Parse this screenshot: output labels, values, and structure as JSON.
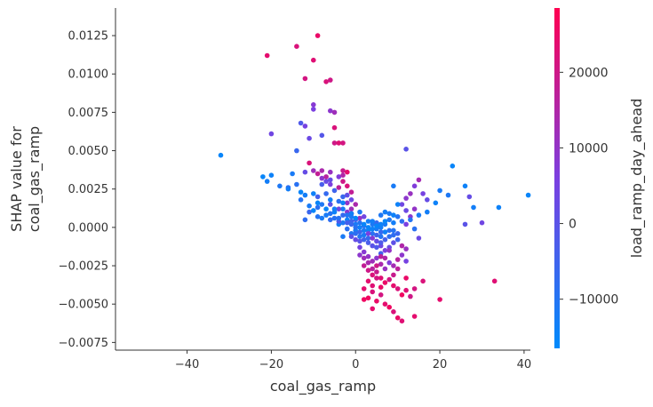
{
  "chart_data": {
    "type": "scatter",
    "title": "",
    "xlabel": "coal_gas_ramp",
    "ylabel_lines": [
      "SHAP value for",
      "coal_gas_ramp"
    ],
    "xlim": [
      -57,
      41.5
    ],
    "ylim": [
      -0.008,
      0.0143
    ],
    "x_ticks": [
      -40,
      -20,
      0,
      20,
      40
    ],
    "x_tick_labels": [
      "−40",
      "−20",
      "0",
      "20",
      "40"
    ],
    "y_ticks": [
      -0.0075,
      -0.005,
      -0.0025,
      0.0,
      0.0025,
      0.005,
      0.0075,
      0.01,
      0.0125
    ],
    "y_tick_labels": [
      "−0.0075",
      "−0.0050",
      "−0.0025",
      "0.0000",
      "0.0025",
      "0.0050",
      "0.0075",
      "0.0100",
      "0.0125"
    ],
    "grid": false,
    "colorbar": {
      "label": "load_ramp_day_ahead",
      "range": [
        -16500,
        28500
      ],
      "ticks": [
        -10000,
        0,
        10000,
        20000
      ],
      "tick_labels": [
        "−10000",
        "0",
        "10000",
        "20000"
      ],
      "low_color": "#008afb",
      "mid_color": "#7b3fe0",
      "high_color": "#ff0051"
    },
    "points": [
      [
        -32,
        0.0047,
        -15000
      ],
      [
        -21,
        0.0112,
        24000
      ],
      [
        -14,
        0.0118,
        22000
      ],
      [
        -9,
        0.0125,
        25000
      ],
      [
        -12,
        0.0097,
        21000
      ],
      [
        -10,
        0.0109,
        23000
      ],
      [
        -7,
        0.0095,
        22000
      ],
      [
        -6,
        0.0096,
        20000
      ],
      [
        -10,
        0.008,
        8000
      ],
      [
        -10,
        0.0077,
        6000
      ],
      [
        -6,
        0.0076,
        9000
      ],
      [
        -5,
        0.0075,
        12000
      ],
      [
        -5,
        0.0065,
        22000
      ],
      [
        -5,
        0.0055,
        20000
      ],
      [
        -4,
        0.0055,
        23000
      ],
      [
        -3,
        0.0055,
        21000
      ],
      [
        -12,
        0.0066,
        5000
      ],
      [
        -13,
        0.0068,
        -2000
      ],
      [
        -11,
        0.0058,
        3000
      ],
      [
        -14,
        0.005,
        -6000
      ],
      [
        -20,
        0.0061,
        4000
      ],
      [
        -8,
        0.006,
        -1000
      ],
      [
        -20,
        0.0034,
        -14000
      ],
      [
        -21,
        0.003,
        -13000
      ],
      [
        -22,
        0.0033,
        -15000
      ],
      [
        -15,
        0.0035,
        -12000
      ],
      [
        -14,
        0.0028,
        -9000
      ],
      [
        -18,
        0.0027,
        -11000
      ],
      [
        -16,
        0.0026,
        -8000
      ],
      [
        -12,
        0.0036,
        2000
      ],
      [
        -10,
        0.0037,
        12000
      ],
      [
        -8,
        0.0037,
        14000
      ],
      [
        -6,
        0.0036,
        11000
      ],
      [
        -3,
        0.0037,
        19000
      ],
      [
        -2,
        0.0036,
        24000
      ],
      [
        -11,
        0.0042,
        22000
      ],
      [
        -8,
        0.0032,
        9000
      ],
      [
        -7,
        0.003,
        3000
      ],
      [
        -6,
        0.0028,
        6000
      ],
      [
        -4,
        0.0026,
        17000
      ],
      [
        -3,
        0.003,
        20000
      ],
      [
        -2,
        0.0027,
        22000
      ],
      [
        -5,
        0.0024,
        -5000
      ],
      [
        -7,
        0.0022,
        -7000
      ],
      [
        -9,
        0.002,
        -4000
      ],
      [
        -12,
        0.0021,
        -13000
      ],
      [
        -13,
        0.0018,
        -10000
      ],
      [
        -11,
        0.0014,
        -12000
      ],
      [
        -9,
        0.0013,
        -9000
      ],
      [
        -8,
        0.0015,
        -11000
      ],
      [
        -6,
        0.0018,
        -13000
      ],
      [
        -4,
        0.0017,
        -9000
      ],
      [
        -3,
        0.002,
        -6000
      ],
      [
        -2,
        0.0021,
        1000
      ],
      [
        -1,
        0.0018,
        3000
      ],
      [
        -3,
        0.0012,
        -12000
      ],
      [
        -5,
        0.001,
        -14000
      ],
      [
        -7,
        0.0008,
        -12000
      ],
      [
        -9,
        0.0007,
        -10000
      ],
      [
        -12,
        0.0005,
        -8000
      ],
      [
        -11,
        0.001,
        -6000
      ],
      [
        -6,
        0.0015,
        0
      ],
      [
        -4,
        0.0012,
        4000
      ],
      [
        -2,
        0.001,
        8000
      ],
      [
        -1,
        0.0012,
        12000
      ],
      [
        -1,
        0.0007,
        -12000
      ],
      [
        -2,
        0.0005,
        -14000
      ],
      [
        -3,
        0.0003,
        -11000
      ],
      [
        -4,
        0.0002,
        -13000
      ],
      [
        -5,
        0.0006,
        -9000
      ],
      [
        -3,
        0.0008,
        -7000
      ],
      [
        -1,
        0.0004,
        -5000
      ],
      [
        0,
        0.0005,
        -3000
      ],
      [
        0,
        0.0002,
        -12000
      ],
      [
        1,
        0.0,
        -14000
      ],
      [
        0,
        -0.0002,
        -13000
      ],
      [
        -1,
        -0.0004,
        -11000
      ],
      [
        -2,
        -0.0001,
        -9000
      ],
      [
        -3,
        -0.0006,
        -12000
      ],
      [
        1,
        0.0003,
        -10000
      ],
      [
        2,
        0.0001,
        -8000
      ],
      [
        1,
        -0.0003,
        -6000
      ],
      [
        2,
        -0.0005,
        -12000
      ],
      [
        3,
        -0.0002,
        -14000
      ],
      [
        3,
        0.0004,
        -13000
      ],
      [
        4,
        0.0002,
        -11000
      ],
      [
        4,
        -0.0004,
        -9000
      ],
      [
        5,
        -0.0001,
        -12000
      ],
      [
        5,
        0.0003,
        -7000
      ],
      [
        6,
        0.0,
        -13000
      ],
      [
        6,
        -0.0006,
        -10000
      ],
      [
        7,
        -0.0003,
        -14000
      ],
      [
        7,
        0.0002,
        -12000
      ],
      [
        8,
        0.0005,
        -11000
      ],
      [
        8,
        -0.0002,
        -9000
      ],
      [
        9,
        0.0003,
        -13000
      ],
      [
        9,
        -0.0005,
        -8000
      ],
      [
        2,
        -0.0008,
        -5000
      ],
      [
        3,
        -0.001,
        -3000
      ],
      [
        4,
        -0.0012,
        0
      ],
      [
        5,
        -0.0009,
        2000
      ],
      [
        6,
        -0.0012,
        4000
      ],
      [
        7,
        -0.0015,
        6000
      ],
      [
        8,
        -0.0013,
        3000
      ],
      [
        9,
        -0.001,
        1000
      ],
      [
        1,
        -0.0013,
        5000
      ],
      [
        2,
        -0.0016,
        8000
      ],
      [
        3,
        -0.0019,
        10000
      ],
      [
        4,
        -0.0022,
        12000
      ],
      [
        5,
        -0.002,
        9000
      ],
      [
        6,
        -0.0024,
        14000
      ],
      [
        7,
        -0.0027,
        11000
      ],
      [
        8,
        -0.0023,
        7000
      ],
      [
        9,
        -0.0025,
        13000
      ],
      [
        10,
        -0.0021,
        16000
      ],
      [
        11,
        -0.0018,
        9000
      ],
      [
        12,
        -0.0022,
        5000
      ],
      [
        2,
        -0.0025,
        18000
      ],
      [
        3,
        -0.0028,
        20000
      ],
      [
        4,
        -0.0031,
        22000
      ],
      [
        5,
        -0.0029,
        19000
      ],
      [
        6,
        -0.0033,
        23000
      ],
      [
        7,
        -0.0036,
        25000
      ],
      [
        8,
        -0.0034,
        21000
      ],
      [
        9,
        -0.0038,
        24000
      ],
      [
        10,
        -0.004,
        22000
      ],
      [
        11,
        -0.0044,
        26000
      ],
      [
        12,
        -0.0041,
        23000
      ],
      [
        13,
        -0.0045,
        20000
      ],
      [
        2,
        -0.004,
        24000
      ],
      [
        3,
        -0.0046,
        26000
      ],
      [
        4,
        -0.0042,
        22000
      ],
      [
        5,
        -0.0048,
        25000
      ],
      [
        6,
        -0.0044,
        21000
      ],
      [
        7,
        -0.005,
        24000
      ],
      [
        8,
        -0.0052,
        26000
      ],
      [
        9,
        -0.0055,
        22000
      ],
      [
        10,
        -0.0059,
        25000
      ],
      [
        11,
        -0.0061,
        23000
      ],
      [
        14,
        -0.0058,
        24000
      ],
      [
        16,
        -0.0035,
        22000
      ],
      [
        20,
        -0.0047,
        24000
      ],
      [
        33,
        -0.0035,
        23000
      ],
      [
        14,
        -0.004,
        21000
      ],
      [
        12,
        -0.0033,
        25000
      ],
      [
        9,
        -0.0031,
        19000
      ],
      [
        10,
        -0.0027,
        17000
      ],
      [
        11,
        -0.0012,
        15000
      ],
      [
        12,
        0.0002,
        6000
      ],
      [
        13,
        0.0007,
        8000
      ],
      [
        12,
        0.0011,
        3000
      ],
      [
        14,
        0.0012,
        10000
      ],
      [
        11,
        0.0015,
        4000
      ],
      [
        12,
        0.0019,
        9000
      ],
      [
        13,
        0.0022,
        11000
      ],
      [
        14,
        0.0027,
        7000
      ],
      [
        15,
        0.0031,
        13000
      ],
      [
        16,
        0.0022,
        5000
      ],
      [
        17,
        0.0018,
        2000
      ],
      [
        12,
        0.0051,
        0
      ],
      [
        9,
        0.0027,
        -12000
      ],
      [
        10,
        0.0015,
        -14000
      ],
      [
        7,
        0.001,
        -13000
      ],
      [
        6,
        0.0008,
        -11000
      ],
      [
        8,
        0.0009,
        -12000
      ],
      [
        10,
        0.0007,
        -10000
      ],
      [
        11,
        0.0004,
        -8000
      ],
      [
        23,
        0.004,
        -15000
      ],
      [
        26,
        0.0027,
        -14000
      ],
      [
        27,
        0.002,
        2000
      ],
      [
        28,
        0.0013,
        -13000
      ],
      [
        26,
        0.0002,
        0
      ],
      [
        30,
        0.0003,
        4000
      ],
      [
        34,
        0.0013,
        -14000
      ],
      [
        41,
        0.0021,
        -15000
      ],
      [
        20,
        0.0024,
        -12000
      ],
      [
        22,
        0.0021,
        -11000
      ],
      [
        19,
        0.0016,
        -14000
      ],
      [
        17,
        0.001,
        -13000
      ],
      [
        15,
        0.0008,
        -12000
      ],
      [
        13,
        0.0005,
        -10000
      ],
      [
        14,
        -0.0001,
        -9000
      ],
      [
        15,
        -0.0007,
        3000
      ],
      [
        12,
        -0.0014,
        11000
      ],
      [
        10,
        -0.0004,
        -6000
      ],
      [
        6,
        -0.0017,
        -4000
      ],
      [
        5,
        -0.0013,
        -2000
      ],
      [
        3,
        -0.0007,
        -7000
      ],
      [
        1,
        -0.0009,
        -1000
      ],
      [
        0,
        -0.0008,
        2000
      ],
      [
        -1,
        -0.0006,
        0
      ],
      [
        0,
        0.0,
        -9000
      ],
      [
        -1,
        0.0002,
        -6000
      ],
      [
        -2,
        0.0003,
        -4000
      ],
      [
        -4,
        0.0004,
        -2000
      ],
      [
        -6,
        0.0005,
        -8000
      ],
      [
        -7,
        0.0012,
        -15000
      ],
      [
        -9,
        0.0016,
        -15000
      ],
      [
        -10,
        0.0022,
        -14000
      ],
      [
        -13,
        0.0023,
        -15000
      ],
      [
        -16,
        0.0025,
        -13000
      ],
      [
        -8,
        0.0028,
        -3000
      ],
      [
        -6,
        0.0031,
        2000
      ],
      [
        -4,
        0.0033,
        7000
      ],
      [
        -3,
        0.0034,
        15000
      ],
      [
        -9,
        0.0035,
        18000
      ],
      [
        -7,
        0.0033,
        16000
      ],
      [
        -1,
        0.0023,
        18000
      ],
      [
        0,
        0.0015,
        14000
      ],
      [
        -2,
        0.0016,
        10000
      ],
      [
        -1,
        0.0009,
        6000
      ],
      [
        1,
        0.0006,
        10000
      ],
      [
        2,
        0.0007,
        4000
      ],
      [
        3,
        -0.0004,
        6000
      ],
      [
        4,
        -0.0007,
        8000
      ],
      [
        5,
        -0.0005,
        -5000
      ],
      [
        6,
        -0.0003,
        -7000
      ],
      [
        7,
        -0.0008,
        -4000
      ],
      [
        8,
        -0.0006,
        -8000
      ],
      [
        9,
        -0.0002,
        -10000
      ],
      [
        8,
        -0.0015,
        10000
      ],
      [
        7,
        -0.002,
        15000
      ],
      [
        6,
        -0.0019,
        17000
      ],
      [
        5,
        -0.0025,
        20000
      ],
      [
        4,
        -0.0027,
        16000
      ],
      [
        3,
        -0.0023,
        14000
      ],
      [
        2,
        -0.002,
        12000
      ],
      [
        1,
        -0.0018,
        9000
      ],
      [
        3,
        -0.0035,
        24000
      ],
      [
        4,
        -0.0038,
        23000
      ],
      [
        5,
        -0.0033,
        21000
      ],
      [
        6,
        -0.0039,
        25000
      ],
      [
        2,
        -0.0047,
        26000
      ],
      [
        4,
        -0.0053,
        24000
      ],
      [
        -1,
        0.0009,
        -13000
      ],
      [
        0,
        0.0006,
        -15000
      ],
      [
        1,
        0.001,
        -11000
      ],
      [
        -2,
        0.0008,
        -10000
      ],
      [
        -3,
        0.0016,
        -14000
      ],
      [
        -5,
        0.0012,
        -13000
      ],
      [
        -8,
        0.0006,
        -12000
      ],
      [
        -10,
        0.0011,
        -15000
      ],
      [
        -6,
        0.0009,
        -10000
      ],
      [
        -4,
        0.0006,
        -9000
      ],
      [
        2,
        0.0002,
        -15000
      ],
      [
        3,
        0.0,
        -15000
      ],
      [
        4,
        -0.0001,
        -14000
      ],
      [
        5,
        0.0001,
        -15000
      ],
      [
        7,
        0.0004,
        -15000
      ],
      [
        9,
        0.0008,
        -14000
      ],
      [
        6,
        0.0002,
        -14000
      ],
      [
        4,
        0.0004,
        -13000
      ],
      [
        2,
        -0.0002,
        -12000
      ],
      [
        1,
        -0.0006,
        -10000
      ],
      [
        0,
        -0.0004,
        -8000
      ],
      [
        6,
        -0.001,
        -2000
      ],
      [
        10,
        -0.0008,
        -5000
      ]
    ]
  }
}
